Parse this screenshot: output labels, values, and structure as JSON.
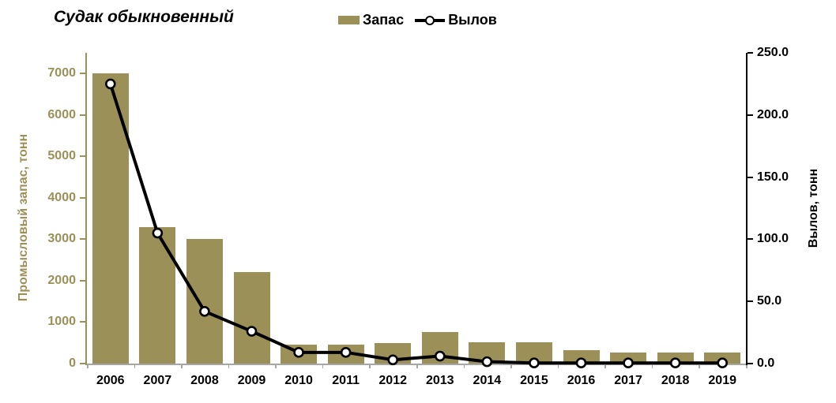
{
  "chart_data": {
    "type": "bar+line combo",
    "title": "Судак обыкновенный",
    "categories": [
      "2006",
      "2007",
      "2008",
      "2009",
      "2010",
      "2011",
      "2012",
      "2013",
      "2014",
      "2015",
      "2016",
      "2017",
      "2018",
      "2019"
    ],
    "series": [
      {
        "name": "Запас",
        "type": "bar",
        "axis": "left",
        "values": [
          7000,
          3300,
          3000,
          2200,
          460,
          450,
          500,
          770,
          510,
          520,
          320,
          260,
          260,
          260
        ]
      },
      {
        "name": "Вылов",
        "type": "line",
        "axis": "right",
        "values": [
          225,
          105,
          42,
          26,
          9,
          9,
          3,
          6,
          1.5,
          0.5,
          0.5,
          0.5,
          0.5,
          0.5
        ]
      }
    ],
    "left_axis": {
      "label": "Промысловый  запас, тонн",
      "tick_labels": [
        "0",
        "1000",
        "2000",
        "3000",
        "4000",
        "5000",
        "6000",
        "7000"
      ],
      "tick_values": [
        0,
        1000,
        2000,
        3000,
        4000,
        5000,
        6000,
        7000
      ],
      "range": [
        0,
        7500
      ]
    },
    "right_axis": {
      "label": "Вылов, тонн",
      "tick_labels": [
        "0.0",
        "50.0",
        "100.0",
        "150.0",
        "200.0",
        "250.0"
      ],
      "tick_values": [
        0,
        50,
        100,
        150,
        200,
        250
      ],
      "range": [
        0,
        250
      ]
    },
    "grid": "off",
    "legend_position": "top-center",
    "colors": {
      "bar_fill": "#9B9057",
      "left_axis_color": "#9B9057",
      "line_color": "#000000",
      "marker_fill": "#FFFFFF",
      "right_axis_color": "#000000",
      "category_axis_color": "#A6A6A6",
      "title_color": "#000000"
    }
  }
}
